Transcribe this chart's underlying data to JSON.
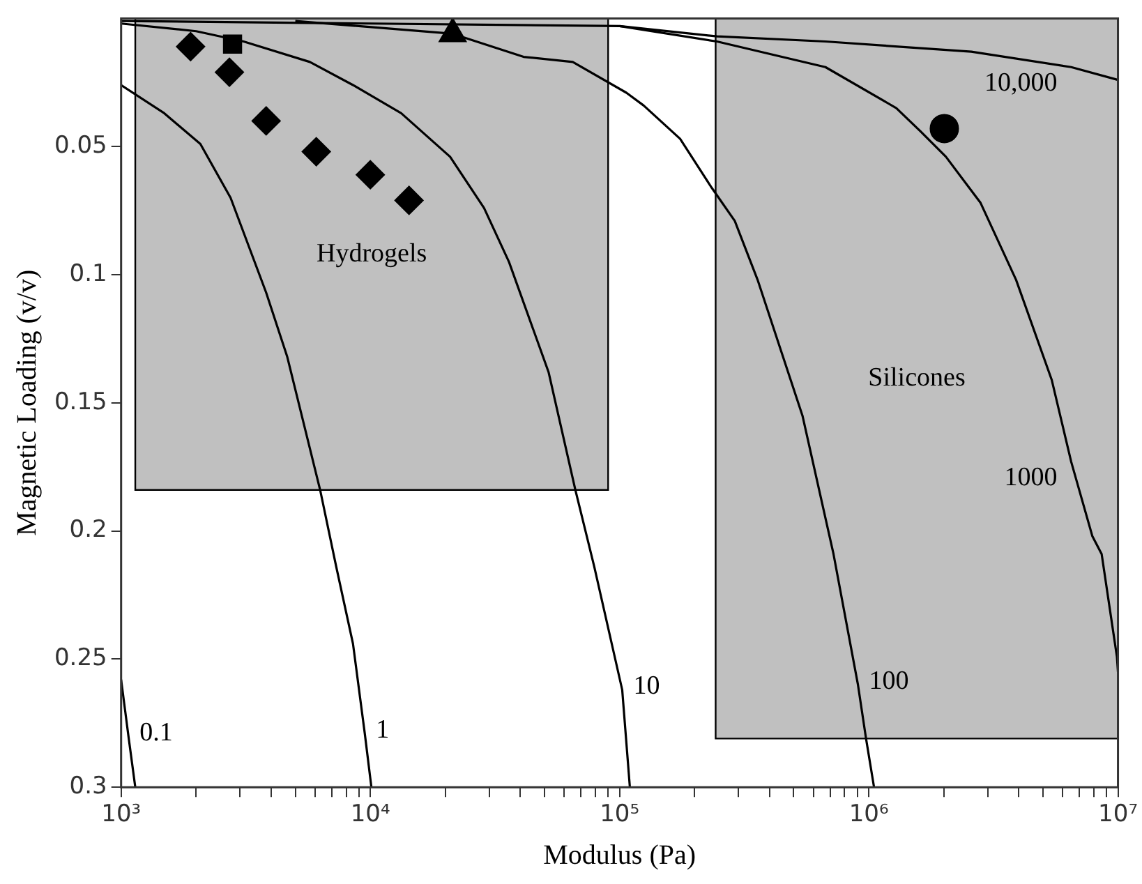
{
  "chart_data": {
    "type": "line",
    "xlabel": "Modulus (Pa)",
    "ylabel": "Magnetic Loading (v/v)",
    "log": "x",
    "xlim": [
      1000,
      10000000
    ],
    "ylim": [
      0.3,
      0
    ],
    "xticks": [
      {
        "value": 1000,
        "label": "10³"
      },
      {
        "value": 2000,
        "label": null
      },
      {
        "value": 3000,
        "label": null
      },
      {
        "value": 4000,
        "label": null
      },
      {
        "value": 5000,
        "label": null
      },
      {
        "value": 6000,
        "label": null
      },
      {
        "value": 7000,
        "label": null
      },
      {
        "value": 8000,
        "label": null
      },
      {
        "value": 9000,
        "label": null
      },
      {
        "value": 10000,
        "label": "10⁴"
      },
      {
        "value": 20000,
        "label": null
      },
      {
        "value": 30000,
        "label": null
      },
      {
        "value": 40000,
        "label": null
      },
      {
        "value": 50000,
        "label": null
      },
      {
        "value": 60000,
        "label": null
      },
      {
        "value": 70000,
        "label": null
      },
      {
        "value": 80000,
        "label": null
      },
      {
        "value": 90000,
        "label": null
      },
      {
        "value": 100000,
        "label": "10⁵"
      },
      {
        "value": 200000,
        "label": null
      },
      {
        "value": 300000,
        "label": null
      },
      {
        "value": 400000,
        "label": null
      },
      {
        "value": 500000,
        "label": null
      },
      {
        "value": 600000,
        "label": null
      },
      {
        "value": 700000,
        "label": null
      },
      {
        "value": 800000,
        "label": null
      },
      {
        "value": 900000,
        "label": null
      },
      {
        "value": 1000000,
        "label": "10⁶"
      },
      {
        "value": 2000000,
        "label": null
      },
      {
        "value": 3000000,
        "label": null
      },
      {
        "value": 4000000,
        "label": null
      },
      {
        "value": 5000000,
        "label": null
      },
      {
        "value": 6000000,
        "label": null
      },
      {
        "value": 7000000,
        "label": null
      },
      {
        "value": 8000000,
        "label": null
      },
      {
        "value": 9000000,
        "label": null
      },
      {
        "value": 10000000,
        "label": "10⁷"
      }
    ],
    "yticks": [
      0.05,
      0.1,
      0.15,
      0.2,
      0.25,
      0.3
    ],
    "grid": false,
    "legend": false,
    "series": [
      {
        "type": "area",
        "name": "Hydrogels",
        "color": "#c0c0c0",
        "x": [
          1140,
          1140,
          90000,
          90000
        ],
        "values": [
          0,
          0.184,
          0.184,
          0
        ]
      },
      {
        "type": "area",
        "name": "Silicones",
        "color": "#c0c0c0",
        "x": [
          243000,
          243000,
          10000000,
          10000000
        ],
        "values": [
          0,
          0.281,
          0.281,
          0
        ]
      },
      {
        "type": "line",
        "color": "#000000",
        "x": [
          1000,
          1070,
          1140
        ],
        "values": [
          0.258,
          0.28,
          0.3
        ]
      },
      {
        "type": "line",
        "color": "#000000",
        "x": [
          1000,
          1490,
          2080,
          2750,
          3820,
          4640,
          6290,
          7300,
          8520,
          9500,
          10100
        ],
        "values": [
          0.026,
          0.037,
          0.049,
          0.07,
          0.107,
          0.132,
          0.184,
          0.214,
          0.244,
          0.279,
          0.3
        ]
      },
      {
        "type": "line",
        "color": "#000000",
        "x": [
          1000,
          2000,
          3100,
          5720,
          8520,
          13300,
          20900,
          28600,
          36000,
          51900,
          66500,
          79200,
          102500,
          110000
        ],
        "values": [
          0.002,
          0.005,
          0.009,
          0.017,
          0.026,
          0.037,
          0.054,
          0.074,
          0.095,
          0.138,
          0.184,
          0.214,
          0.262,
          0.3
        ]
      },
      {
        "type": "line",
        "color": "#000000",
        "x": [
          5000,
          21400,
          41200,
          64900,
          106500,
          125000,
          175000,
          234000,
          290000,
          358000,
          542000,
          722000,
          905000,
          975000,
          1050000
        ],
        "values": [
          0.001,
          0.006,
          0.015,
          0.017,
          0.029,
          0.034,
          0.047,
          0.066,
          0.079,
          0.102,
          0.155,
          0.209,
          0.26,
          0.281,
          0.3
        ]
      },
      {
        "type": "line",
        "color": "#000000",
        "x": [
          100000,
          246000,
          670000,
          1290000,
          1610000,
          2040000,
          2810000,
          3900000,
          5420000,
          6490000,
          7890000,
          8600000,
          9900000,
          10000000
        ],
        "values": [
          0.003,
          0.009,
          0.019,
          0.035,
          0.044,
          0.054,
          0.072,
          0.102,
          0.141,
          0.173,
          0.202,
          0.209,
          0.249,
          0.255
        ]
      },
      {
        "type": "line",
        "color": "#000000",
        "x": [
          1000,
          100000,
          246000,
          670000,
          2580000,
          6490000,
          10000000
        ],
        "values": [
          0.001,
          0.003,
          0.007,
          0.009,
          0.013,
          0.019,
          0.024
        ]
      },
      {
        "type": "scatter",
        "marker": "diamond",
        "color": "#000000",
        "x": [
          1900,
          2720,
          3820,
          6070,
          10000,
          14300
        ],
        "values": [
          0.011,
          0.021,
          0.04,
          0.052,
          0.061,
          0.071
        ]
      },
      {
        "type": "scatter",
        "marker": "square",
        "color": "#000000",
        "x": [
          2800
        ],
        "values": [
          0.01
        ]
      },
      {
        "type": "scatter",
        "marker": "triangle",
        "color": "#000000",
        "x": [
          21400
        ],
        "values": [
          0.006
        ]
      },
      {
        "type": "scatter",
        "marker": "circle",
        "color": "#000000",
        "x": [
          2010000
        ],
        "values": [
          0.043
        ]
      }
    ],
    "annotations": [
      {
        "text": "0.1",
        "x": 1070,
        "y": 0.28
      },
      {
        "text": "1",
        "x": 9500,
        "y": 0.279
      },
      {
        "text": "10",
        "x": 102500,
        "y": 0.262
      },
      {
        "text": "100",
        "x": 905000,
        "y": 0.26
      },
      {
        "text": "1000",
        "x": 6490000,
        "y": 0.173
      },
      {
        "text": "10,000",
        "x": 6490000,
        "y": 0.019
      }
    ]
  }
}
